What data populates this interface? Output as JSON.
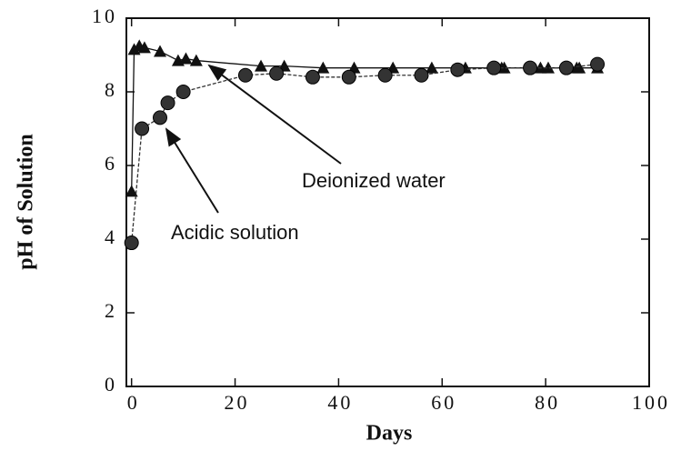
{
  "chart_data": {
    "type": "line",
    "x_label": "Days",
    "y_label": "pH of Solution",
    "xlim": [
      -1,
      100
    ],
    "xticks": [
      0,
      20,
      40,
      60,
      80,
      100
    ],
    "ylim": [
      0,
      10
    ],
    "yticks": [
      0,
      2,
      4,
      6,
      8,
      10
    ],
    "series": [
      {
        "name": "Deionized water",
        "color": "#111111",
        "marker": "triangle",
        "x": [
          0,
          0.5,
          1.5,
          2.5,
          5.5,
          9,
          10.5,
          12.5,
          25,
          29.5,
          37,
          43,
          50.5,
          58,
          64.5,
          71.5,
          72,
          79,
          80.5,
          86,
          86.5,
          90
        ],
        "values": [
          5.3,
          9.15,
          9.25,
          9.2,
          9.1,
          8.85,
          8.9,
          8.85,
          8.7,
          8.7,
          8.65,
          8.65,
          8.65,
          8.65,
          8.65,
          8.65,
          8.65,
          8.65,
          8.65,
          8.65,
          8.65,
          8.65
        ]
      },
      {
        "name": "Acidic solution",
        "color": "#333333",
        "marker": "circle",
        "x": [
          0,
          2,
          5.5,
          7,
          10,
          22,
          28,
          35,
          42,
          49,
          56,
          63,
          70,
          77,
          84,
          90
        ],
        "values": [
          3.9,
          7.0,
          7.3,
          7.7,
          8.0,
          8.45,
          8.5,
          8.4,
          8.4,
          8.45,
          8.45,
          8.6,
          8.65,
          8.65,
          8.65,
          8.75
        ]
      }
    ]
  }
}
